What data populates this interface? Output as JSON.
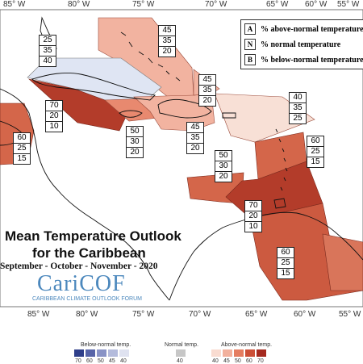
{
  "map": {
    "title_line1": "Mean Temperature Outlook",
    "title_line2": "for the Caribbean",
    "season": "September - October - November - 2020",
    "longitudes_top": [
      "85° W",
      "80° W",
      "75° W",
      "70° W",
      "65° W",
      "60° W",
      "55° W"
    ],
    "longitudes_bottom": [
      "85° W",
      "80° W",
      "75° W",
      "70° W",
      "65° W",
      "60° W",
      "55° W"
    ],
    "region_colors": {
      "a70": "#b33c2a",
      "a60": "#d4664a",
      "a50": "#e8896f",
      "a45": "#f2b3a0",
      "a40": "#f8d9cd",
      "b40": "#dfe5f3"
    }
  },
  "key": {
    "items": [
      {
        "letter": "A",
        "text": "% above-normal temperature"
      },
      {
        "letter": "N",
        "text": "% normal temperature"
      },
      {
        "letter": "B",
        "text": "% below-normal temperature"
      }
    ]
  },
  "regions": [
    {
      "id": "bahamas",
      "values": [
        "45",
        "35",
        "20"
      ]
    },
    {
      "id": "cuba",
      "values": [
        "25",
        "35",
        "40"
      ]
    },
    {
      "id": "cayman-jamaica-west",
      "values": [
        "70",
        "20",
        "10"
      ]
    },
    {
      "id": "jamaica",
      "values": [
        "50",
        "30",
        "20"
      ]
    },
    {
      "id": "hispaniola",
      "values": [
        "45",
        "35",
        "20"
      ]
    },
    {
      "id": "turks-caicos",
      "values": [
        "45",
        "35",
        "20"
      ]
    },
    {
      "id": "north-atlantic",
      "values": [
        "40",
        "35",
        "25"
      ]
    },
    {
      "id": "belize",
      "values": [
        "60",
        "25",
        "15"
      ]
    },
    {
      "id": "caribbean-sea-central",
      "values": [
        "50",
        "30",
        "20"
      ]
    },
    {
      "id": "leeward-islands",
      "values": [
        "60",
        "25",
        "15"
      ]
    },
    {
      "id": "southern-caribbean",
      "values": [
        "70",
        "20",
        "10"
      ]
    },
    {
      "id": "guianas",
      "values": [
        "60",
        "25",
        "15"
      ]
    }
  ],
  "logo": {
    "name": "CariCOF",
    "subtitle": "CARIBBEAN CLIMATE OUTLOOK FORUM"
  },
  "legend": {
    "below_label": "Below-normal temp.",
    "normal_label": "Normal temp.",
    "above_label": "Above-normal temp.",
    "below_ticks": [
      "70",
      "60",
      "50",
      "45",
      "40"
    ],
    "normal_ticks": [
      "40"
    ],
    "above_ticks": [
      "40",
      "45",
      "50",
      "60",
      "70"
    ],
    "below_colors": [
      "#2f3f8a",
      "#5764a8",
      "#8993c6",
      "#b4bbdc",
      "#dfe2f0"
    ],
    "normal_color": "#c7c7c7",
    "above_colors": [
      "#f9dcd1",
      "#f2b09c",
      "#e57d60",
      "#cc4f36",
      "#a52a1f"
    ]
  }
}
